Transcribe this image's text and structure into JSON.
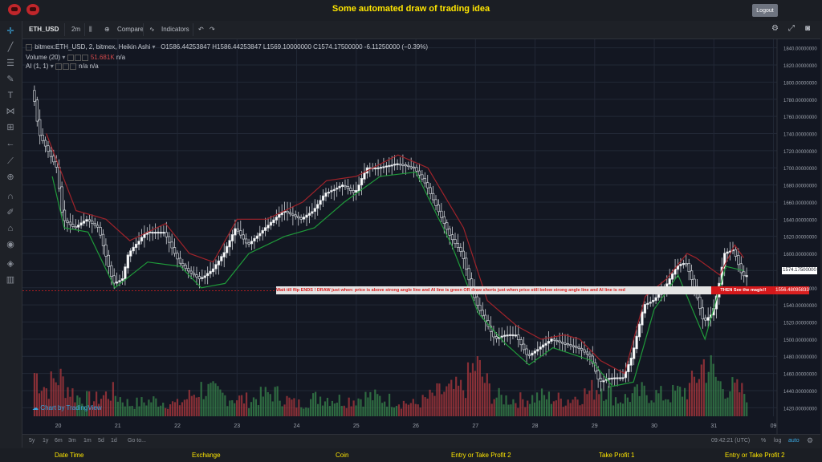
{
  "app_title": "Some automated draw of trading idea",
  "logout_label": "Logout",
  "toolbar": {
    "symbol": "ETH_USD",
    "interval": "2m",
    "compare_label": "Compare",
    "indicators_label": "Indicators"
  },
  "legend": {
    "symbol_line": "bitmex:ETH_USD, 2, bitmex, Heikin Ashi",
    "ohlc": "O1586.44253847  H1586.44253847  L1569.10000000  C1574.17500000   -6.11250000 (−0.39%)",
    "volume_label": "Volume (20)",
    "volume_value": "51.681K",
    "volume_extra": "n/a",
    "ai_label": "AI (1, 1)",
    "ai_value": "n/a",
    "ai_value2": "n/a"
  },
  "banner": {
    "text": "Wait till flip ENDS  !   DRAW just when:  price is above strong angle line and AI line is green        OR        draw shorts just when price still below strong angle line and AI line is red",
    "end_text": "THEN See the magic!!",
    "price_tag": "1556.48095833"
  },
  "last_price_tag": "1574.17500000",
  "watermark": "Chart by TradingView",
  "bottom": {
    "ranges": [
      "5y",
      "1y",
      "6m",
      "3m",
      "1m",
      "5d",
      "1d"
    ],
    "goto": "Go to...",
    "clock": "09:42:21 (UTC)",
    "percent": "%",
    "log": "log",
    "auto": "auto"
  },
  "footer": [
    "Date Time",
    "Exchange",
    "Coin",
    "Entry or Take Profit 2",
    "Take Profit 1",
    "Entry or Take Profit 2"
  ],
  "colors": {
    "up": "#3b8f4f",
    "down": "#b93a3f",
    "green_line": "#1f9a3a",
    "red_line": "#a0232a",
    "accent": "#3ba7e0"
  },
  "chart_data": {
    "type": "line",
    "chart_style": "Heikin Ashi candles with volume and AI line",
    "x_tick_labels": [
      "20",
      "21",
      "22",
      "23",
      "24",
      "25",
      "26",
      "27",
      "28",
      "29",
      "30",
      "31",
      "09"
    ],
    "y_tick_labels": [
      "1420.00000000",
      "1440.00000000",
      "1460.00000000",
      "1480.00000000",
      "1500.00000000",
      "1520.00000000",
      "1540.00000000",
      "1560.00000000",
      "1580.00000000",
      "1600.00000000",
      "1620.00000000",
      "1640.00000000",
      "1660.00000000",
      "1680.00000000",
      "1700.00000000",
      "1720.00000000",
      "1740.00000000",
      "1760.00000000",
      "1780.00000000",
      "1800.00000000",
      "1820.00000000",
      "1840.00000000"
    ],
    "ylim": [
      1410,
      1850
    ],
    "grid": true,
    "price_path": [
      [
        19.6,
        1790
      ],
      [
        19.7,
        1740
      ],
      [
        19.85,
        1720
      ],
      [
        20.0,
        1700
      ],
      [
        20.1,
        1640
      ],
      [
        20.3,
        1630
      ],
      [
        20.5,
        1640
      ],
      [
        20.7,
        1630
      ],
      [
        20.85,
        1590
      ],
      [
        20.95,
        1565
      ],
      [
        21.1,
        1570
      ],
      [
        21.2,
        1600
      ],
      [
        21.5,
        1625
      ],
      [
        21.8,
        1625
      ],
      [
        22.05,
        1590
      ],
      [
        22.2,
        1580
      ],
      [
        22.4,
        1570
      ],
      [
        22.6,
        1580
      ],
      [
        22.8,
        1600
      ],
      [
        23.0,
        1630
      ],
      [
        23.2,
        1610
      ],
      [
        23.5,
        1630
      ],
      [
        23.8,
        1650
      ],
      [
        24.1,
        1640
      ],
      [
        24.3,
        1650
      ],
      [
        24.5,
        1670
      ],
      [
        24.8,
        1680
      ],
      [
        25.0,
        1670
      ],
      [
        25.2,
        1700
      ],
      [
        25.4,
        1700
      ],
      [
        25.7,
        1705
      ],
      [
        26.0,
        1700
      ],
      [
        26.2,
        1680
      ],
      [
        26.4,
        1650
      ],
      [
        26.6,
        1620
      ],
      [
        26.8,
        1600
      ],
      [
        26.95,
        1560
      ],
      [
        27.05,
        1540
      ],
      [
        27.2,
        1520
      ],
      [
        27.35,
        1500
      ],
      [
        27.5,
        1505
      ],
      [
        27.7,
        1505
      ],
      [
        27.9,
        1480
      ],
      [
        28.1,
        1490
      ],
      [
        28.3,
        1500
      ],
      [
        28.5,
        1495
      ],
      [
        28.75,
        1490
      ],
      [
        28.95,
        1480
      ],
      [
        29.1,
        1450
      ],
      [
        29.3,
        1455
      ],
      [
        29.5,
        1455
      ],
      [
        29.65,
        1480
      ],
      [
        29.85,
        1540
      ],
      [
        30.0,
        1545
      ],
      [
        30.2,
        1560
      ],
      [
        30.4,
        1585
      ],
      [
        30.55,
        1590
      ],
      [
        30.7,
        1560
      ],
      [
        30.85,
        1520
      ],
      [
        31.0,
        1530
      ],
      [
        31.1,
        1560
      ],
      [
        31.2,
        1600
      ],
      [
        31.35,
        1605
      ],
      [
        31.5,
        1574
      ]
    ],
    "ai_green": [
      [
        19.9,
        1690
      ],
      [
        20.1,
        1630
      ],
      [
        20.5,
        1625
      ],
      [
        20.95,
        1560
      ],
      [
        21.5,
        1590
      ],
      [
        22.05,
        1585
      ],
      [
        22.4,
        1560
      ],
      [
        22.8,
        1565
      ],
      [
        23.2,
        1600
      ],
      [
        23.8,
        1620
      ],
      [
        24.3,
        1630
      ],
      [
        24.8,
        1660
      ],
      [
        25.4,
        1690
      ],
      [
        26.0,
        1695
      ],
      [
        26.6,
        1610
      ],
      [
        27.05,
        1530
      ],
      [
        27.5,
        1495
      ],
      [
        27.9,
        1470
      ],
      [
        28.3,
        1490
      ],
      [
        28.95,
        1475
      ],
      [
        29.3,
        1445
      ],
      [
        29.65,
        1450
      ],
      [
        30.0,
        1535
      ],
      [
        30.4,
        1575
      ],
      [
        30.85,
        1500
      ],
      [
        31.2,
        1585
      ],
      [
        31.5,
        1580
      ]
    ],
    "ai_red": [
      [
        19.8,
        1740
      ],
      [
        20.3,
        1650
      ],
      [
        20.8,
        1640
      ],
      [
        21.2,
        1615
      ],
      [
        21.8,
        1635
      ],
      [
        22.2,
        1600
      ],
      [
        22.6,
        1590
      ],
      [
        23.0,
        1640
      ],
      [
        23.5,
        1640
      ],
      [
        24.1,
        1660
      ],
      [
        24.5,
        1685
      ],
      [
        25.0,
        1690
      ],
      [
        25.7,
        1715
      ],
      [
        26.2,
        1700
      ],
      [
        26.8,
        1630
      ],
      [
        27.2,
        1545
      ],
      [
        27.7,
        1515
      ],
      [
        28.1,
        1500
      ],
      [
        28.5,
        1505
      ],
      [
        28.75,
        1500
      ],
      [
        29.1,
        1475
      ],
      [
        29.5,
        1460
      ],
      [
        29.85,
        1550
      ],
      [
        30.2,
        1570
      ],
      [
        30.55,
        1600
      ],
      [
        30.7,
        1595
      ],
      [
        31.1,
        1575
      ],
      [
        31.35,
        1610
      ],
      [
        31.5,
        1595
      ]
    ],
    "volume_profile": [
      [
        19.6,
        0.55
      ],
      [
        19.8,
        0.35
      ],
      [
        20.0,
        0.5
      ],
      [
        20.3,
        0.25
      ],
      [
        20.6,
        0.2
      ],
      [
        20.9,
        0.3
      ],
      [
        21.2,
        0.15
      ],
      [
        21.6,
        0.2
      ],
      [
        22.0,
        0.15
      ],
      [
        22.4,
        0.35
      ],
      [
        22.8,
        0.25
      ],
      [
        23.2,
        0.2
      ],
      [
        23.6,
        0.3
      ],
      [
        24.0,
        0.15
      ],
      [
        24.4,
        0.25
      ],
      [
        24.8,
        0.2
      ],
      [
        25.2,
        0.25
      ],
      [
        25.6,
        0.2
      ],
      [
        26.0,
        0.15
      ],
      [
        26.4,
        0.3
      ],
      [
        26.8,
        0.35
      ],
      [
        27.0,
        0.65
      ],
      [
        27.3,
        0.25
      ],
      [
        27.7,
        0.2
      ],
      [
        28.1,
        0.25
      ],
      [
        28.5,
        0.2
      ],
      [
        28.9,
        0.3
      ],
      [
        29.1,
        0.4
      ],
      [
        29.4,
        0.2
      ],
      [
        29.8,
        0.3
      ],
      [
        30.2,
        0.25
      ],
      [
        30.6,
        0.35
      ],
      [
        30.85,
        0.7
      ],
      [
        31.1,
        0.4
      ],
      [
        31.5,
        0.3
      ]
    ]
  }
}
